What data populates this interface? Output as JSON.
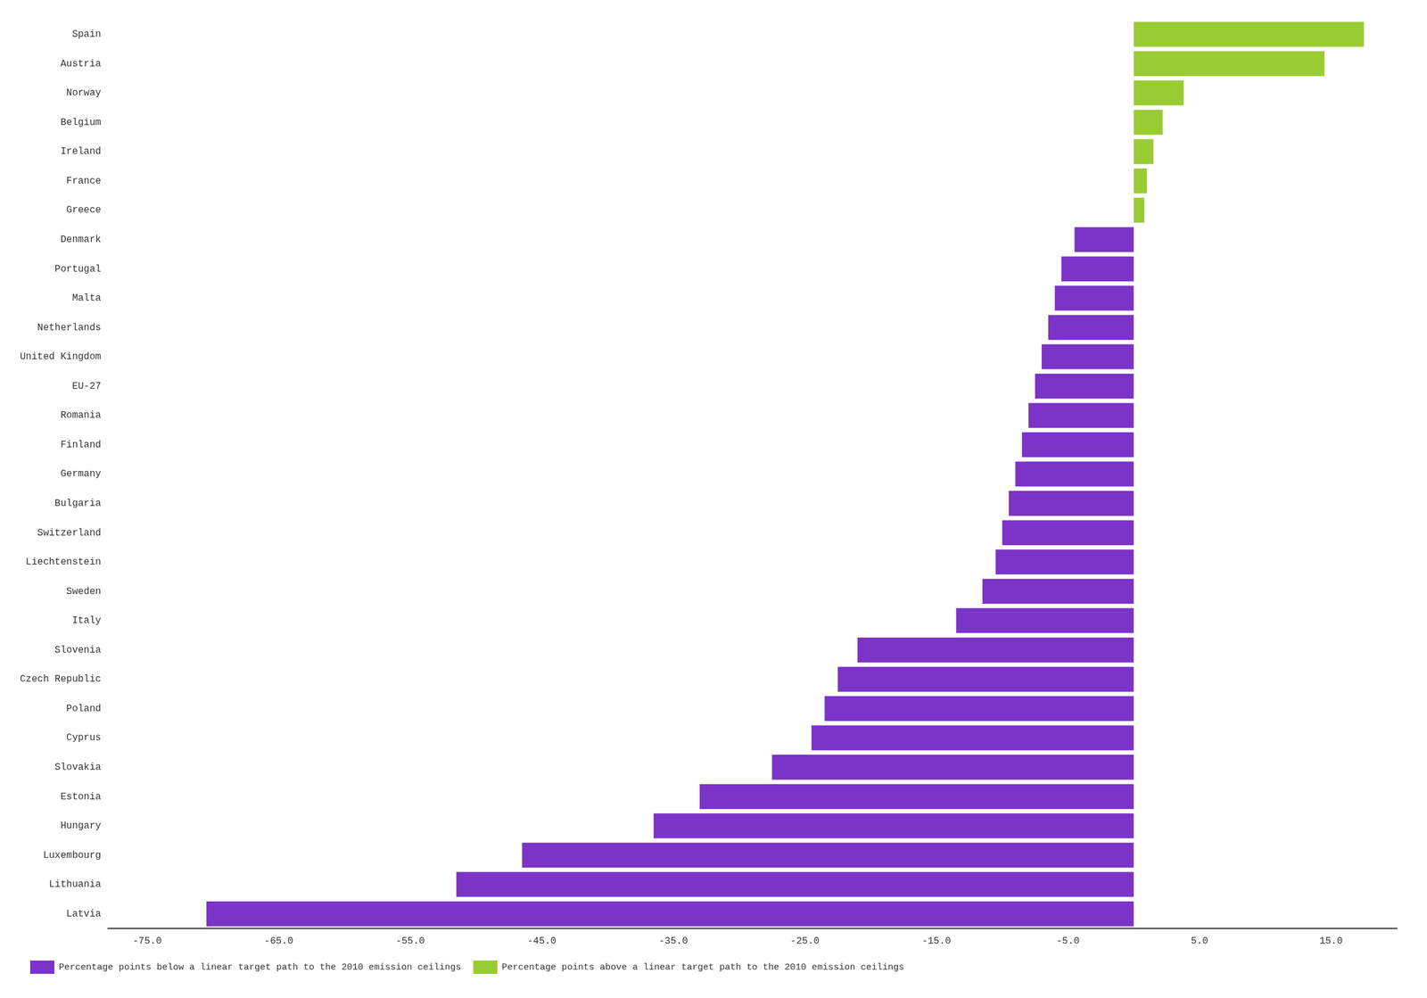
{
  "chart_data": {
    "type": "bar",
    "orientation": "horizontal",
    "categories": [
      "Latvia",
      "Lithuania",
      "Luxembourg",
      "Hungary",
      "Estonia",
      "Slovakia",
      "Cyprus",
      "Poland",
      "Czech Republic",
      "Slovenia",
      "Italy",
      "Sweden",
      "Liechtenstein",
      "Switzerland",
      "Bulgaria",
      "Germany",
      "Finland",
      "Romania",
      "EU-27",
      "United Kingdom",
      "Netherlands",
      "Malta",
      "Portugal",
      "Denmark",
      "Greece",
      "France",
      "Ireland",
      "Belgium",
      "Norway",
      "Austria",
      "Spain"
    ],
    "series": [
      {
        "name": "Percentage points below a linear target path to the 2010 emission ceilings",
        "color": "#7B33C8",
        "values": [
          -70.5,
          -51.5,
          -46.5,
          -36.5,
          -33.0,
          -27.5,
          -24.5,
          -23.5,
          -22.5,
          -21.0,
          -13.5,
          -11.5,
          -10.5,
          -10.0,
          -9.5,
          -9.0,
          -8.5,
          -8.0,
          -7.5,
          -7.0,
          -6.5,
          -6.0,
          -5.5,
          -4.5,
          null,
          null,
          null,
          null,
          null,
          null,
          null
        ]
      },
      {
        "name": "Percentage points above a linear target path to the 2010 emission ceilings",
        "color": "#99CC33",
        "values": [
          null,
          null,
          null,
          null,
          null,
          null,
          null,
          null,
          null,
          null,
          null,
          null,
          null,
          null,
          null,
          null,
          null,
          null,
          null,
          null,
          null,
          null,
          null,
          null,
          0.8,
          1.0,
          1.5,
          2.2,
          3.8,
          14.5,
          17.5
        ]
      }
    ],
    "xlim": [
      -78,
      20
    ],
    "xticks": [
      {
        "value": -75,
        "label": "-75.0"
      },
      {
        "value": -65,
        "label": "-65.0"
      },
      {
        "value": -55,
        "label": "-55.0"
      },
      {
        "value": -45,
        "label": "-45.0"
      },
      {
        "value": -35,
        "label": "-35.0"
      },
      {
        "value": -25,
        "label": "-25.0"
      },
      {
        "value": -15,
        "label": "-15.0"
      },
      {
        "value": -5,
        "label": "-5.0"
      },
      {
        "value": 5,
        "label": "5.0"
      },
      {
        "value": 15,
        "label": "15.0"
      }
    ],
    "grid": false,
    "legend": "lower left"
  }
}
